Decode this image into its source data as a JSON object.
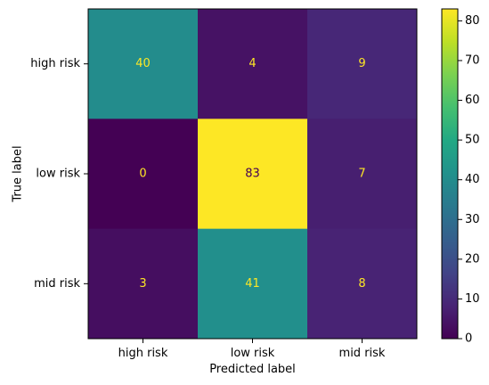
{
  "chart_data": {
    "type": "heatmap",
    "title": "",
    "xlabel": "Predicted label",
    "ylabel": "True label",
    "x_categories": [
      "high risk",
      "low risk",
      "mid risk"
    ],
    "y_categories": [
      "high risk",
      "low risk",
      "mid risk"
    ],
    "values": [
      [
        40,
        4,
        9
      ],
      [
        0,
        83,
        7
      ],
      [
        3,
        41,
        8
      ]
    ],
    "colormap": "viridis",
    "colorbar": {
      "min": 0,
      "max": 83,
      "ticks": [
        0,
        10,
        20,
        30,
        40,
        50,
        60,
        70,
        80
      ]
    },
    "text_colors": {
      "on_dark": "#fde725",
      "on_light": "#440154"
    },
    "grid": false
  }
}
